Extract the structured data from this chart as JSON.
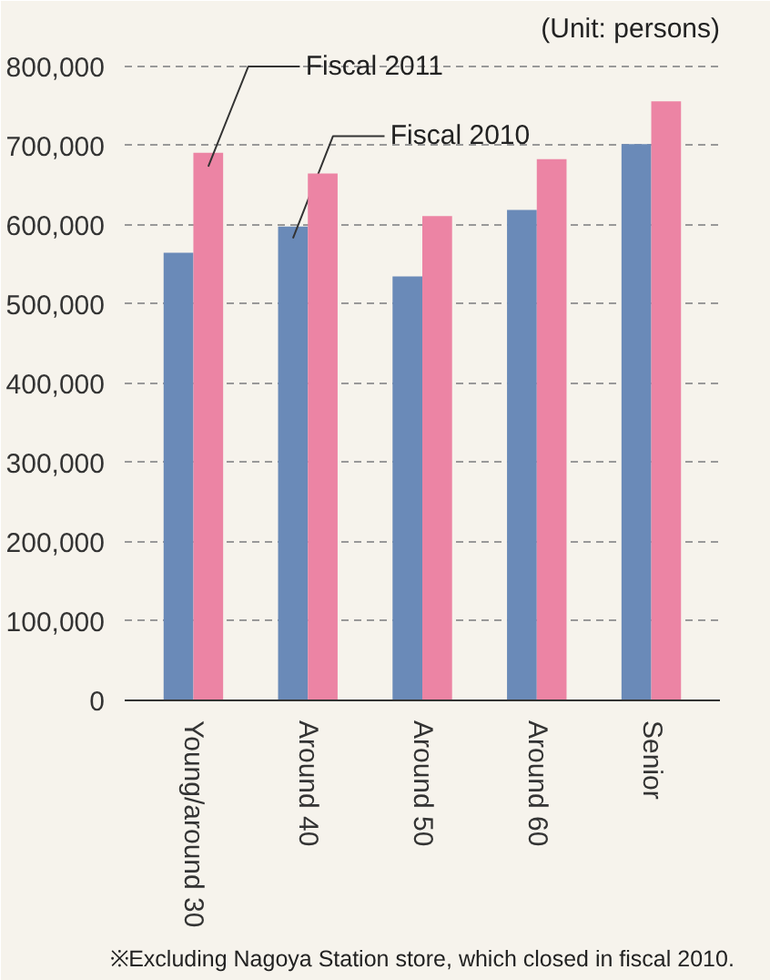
{
  "chart_data": {
    "type": "bar",
    "subtitle": "(Unit: persons)",
    "categories": [
      "Young/around 30",
      "Around 40",
      "Around 50",
      "Around 60",
      "Senior"
    ],
    "series": [
      {
        "name": "Fiscal 2010",
        "color": "#6a8ab8",
        "values": [
          565000,
          598000,
          535000,
          619000,
          702000
        ]
      },
      {
        "name": "Fiscal 2011",
        "color": "#ec84a4",
        "values": [
          691000,
          665000,
          611000,
          683000,
          756000
        ]
      }
    ],
    "ylim": [
      0,
      800000
    ],
    "yticks": [
      {
        "value": 0,
        "label": "0"
      },
      {
        "value": 100000,
        "label": "100,000"
      },
      {
        "value": 200000,
        "label": "200,000"
      },
      {
        "value": 300000,
        "label": "300,000"
      },
      {
        "value": 400000,
        "label": "400,000"
      },
      {
        "value": 500000,
        "label": "500,000"
      },
      {
        "value": 600000,
        "label": "600,000"
      },
      {
        "value": 700000,
        "label": "700,000"
      },
      {
        "value": 800000,
        "label": "800,000"
      }
    ],
    "grid": "y",
    "legend": false,
    "annotations": [
      "※Excluding Nagoya Station store, which closed in fiscal 2010."
    ]
  }
}
